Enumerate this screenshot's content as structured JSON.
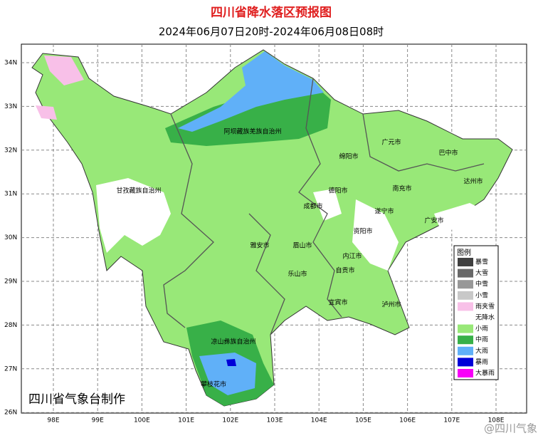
{
  "header": {
    "title": "四川省降水落区预报图",
    "subtitle": "2024年06月07日20时-2024年06月08日08时"
  },
  "map": {
    "lat_labels": [
      "34N",
      "33N",
      "32N",
      "31N",
      "30N",
      "29N",
      "28N",
      "27N",
      "26N"
    ],
    "lon_labels": [
      "98E",
      "99E",
      "100E",
      "101E",
      "102E",
      "103E",
      "104E",
      "105E",
      "106E",
      "107E",
      "108E"
    ],
    "regions": [
      "阿坝藏族羌族自治州",
      "甘孜藏族自治州",
      "绵阳市",
      "广元市",
      "巴中市",
      "达州市",
      "德阳市",
      "南充市",
      "成都市",
      "遂宁市",
      "广安市",
      "资阳市",
      "雅安市",
      "眉山市",
      "内江市",
      "乐山市",
      "自贡市",
      "宜宾市",
      "泸州市",
      "凉山彝族自治州",
      "攀枝花市"
    ]
  },
  "legend": {
    "title": "图例",
    "items": [
      "暴雪",
      "大雪",
      "中雪",
      "小雪",
      "雨夹雪",
      "无降水",
      "小雨",
      "中雨",
      "大雨",
      "暴雨",
      "大暴雨"
    ]
  },
  "footer": {
    "credit": "四川省气象台制作",
    "watermark": "@四川气象"
  }
}
